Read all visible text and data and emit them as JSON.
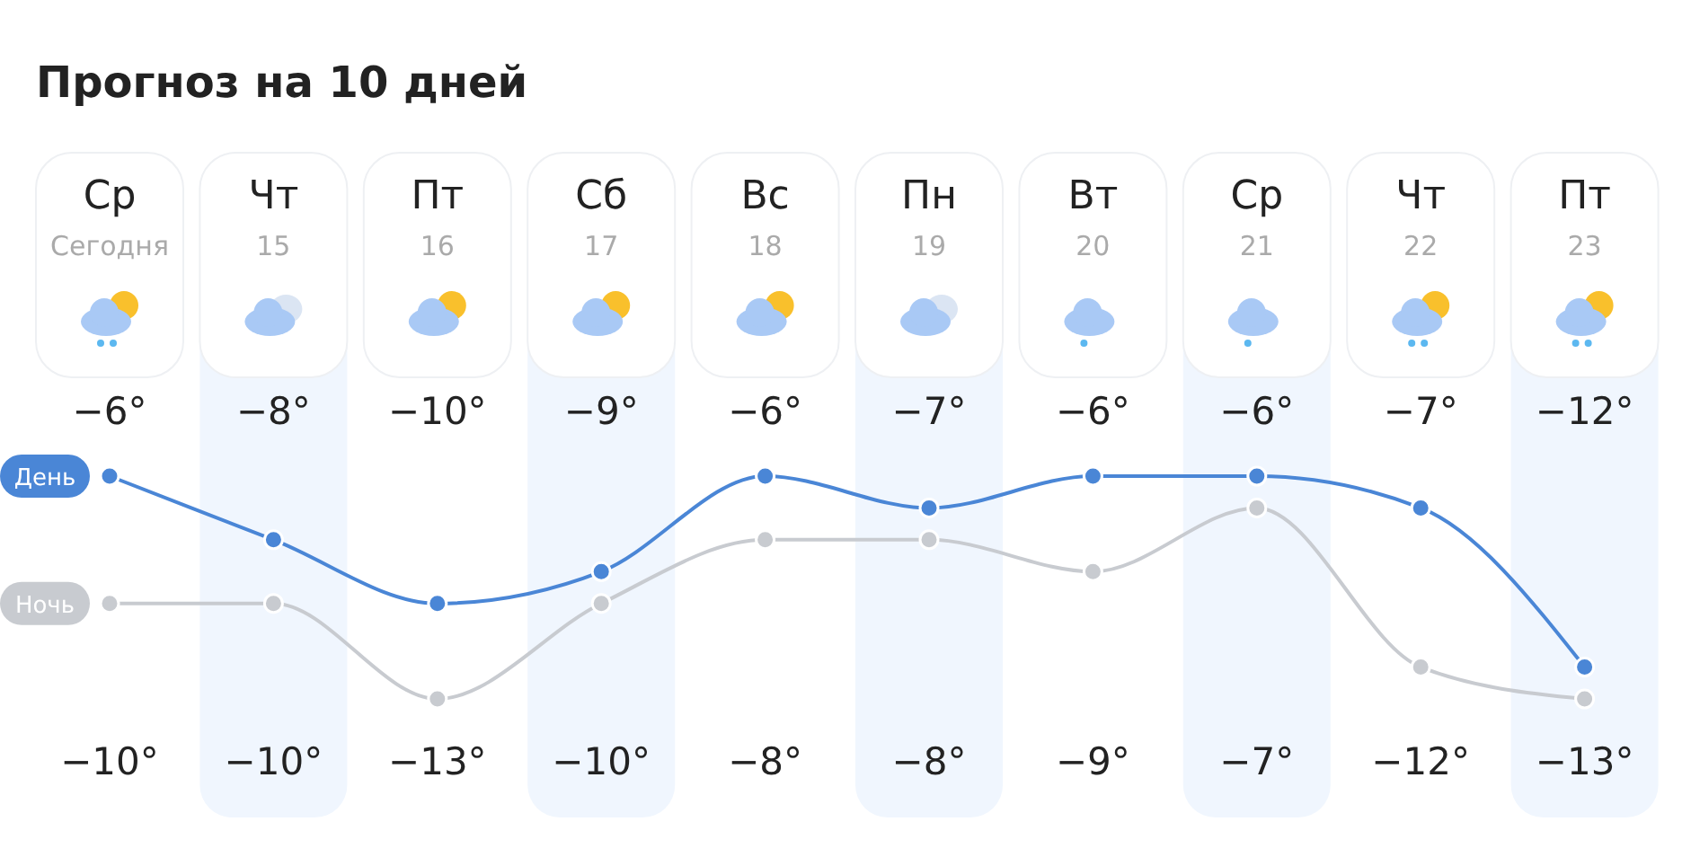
{
  "chart_data": {
    "type": "line",
    "title": "Прогноз на 10 дней",
    "categories": [
      "Ср\nСегодня",
      "Чт\n15",
      "Пт\n16",
      "Сб\n17",
      "Вс\n18",
      "Пн\n19",
      "Вт\n20",
      "Ср\n21",
      "Чт\n22",
      "Пт\n23"
    ],
    "series": [
      {
        "name": "День",
        "color": "#4a86d6",
        "values": [
          -6,
          -8,
          -10,
          -9,
          -6,
          -7,
          -6,
          -6,
          -7,
          -12
        ],
        "value_labels": [
          "−6°",
          "−8°",
          "−10°",
          "−9°",
          "−6°",
          "−7°",
          "−6°",
          "−6°",
          "−7°",
          "−12°"
        ]
      },
      {
        "name": "Ночь",
        "color": "#c8cbd0",
        "values": [
          -10,
          -10,
          -13,
          -10,
          -8,
          -8,
          -9,
          -7,
          -12,
          -13
        ],
        "value_labels": [
          "−10°",
          "−10°",
          "−13°",
          "−10°",
          "−8°",
          "−8°",
          "−9°",
          "−7°",
          "−12°",
          "−13°"
        ]
      }
    ],
    "bands": [
      {
        "axis": "x",
        "from": "Чт\n15",
        "to": "Чт\n15",
        "color": "#f0f6fe"
      },
      {
        "axis": "x",
        "from": "Сб\n17",
        "to": "Сб\n17",
        "color": "#f0f6fe"
      },
      {
        "axis": "x",
        "from": "Пн\n19",
        "to": "Пн\n19",
        "color": "#f0f6fe"
      },
      {
        "axis": "x",
        "from": "Ср\n21",
        "to": "Ср\n21",
        "color": "#f0f6fe"
      },
      {
        "axis": "x",
        "from": "Пт\n23",
        "to": "Пт\n23",
        "color": "#f0f6fe"
      }
    ],
    "legend": "left",
    "marker": "circle",
    "line_style": "solid",
    "tick_labels": "x",
    "grid": false
  }
}
